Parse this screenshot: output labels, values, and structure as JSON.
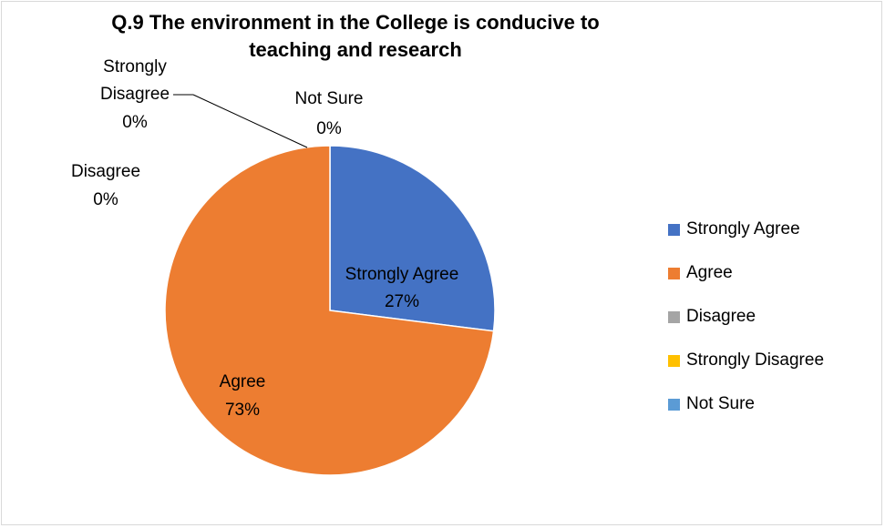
{
  "chart_data": {
    "type": "pie",
    "title": "Q.9 The environment in the College is conducive to teaching and research",
    "categories": [
      "Strongly Agree",
      "Agree",
      "Disagree",
      "Strongly Disagree",
      "Not Sure"
    ],
    "values": [
      27,
      73,
      0,
      0,
      0
    ],
    "value_labels": [
      "27%",
      "73%",
      "0%",
      "0%",
      "0%"
    ],
    "colors": [
      "#4472c4",
      "#ed7d31",
      "#a5a5a5",
      "#ffc000",
      "#5b9bd5"
    ],
    "legend_position": "right"
  }
}
